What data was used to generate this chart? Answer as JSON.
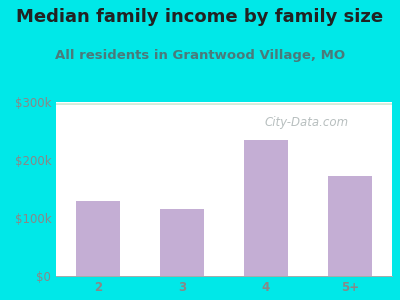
{
  "title": "Median family income by family size",
  "subtitle": "All residents in Grantwood Village, MO",
  "categories": [
    "2",
    "3",
    "4",
    "5+"
  ],
  "values": [
    130000,
    115000,
    235000,
    172000
  ],
  "bar_color": "#c4aed4",
  "title_color": "#222222",
  "subtitle_color": "#4a7a7a",
  "tick_color": "#888888",
  "background_outer": "#00e8e8",
  "ylim": [
    0,
    300000
  ],
  "yticks": [
    0,
    100000,
    200000,
    300000
  ],
  "ytick_labels": [
    "$0",
    "$100k",
    "$200k",
    "$300k"
  ],
  "watermark": "City-Data.com",
  "title_fontsize": 13,
  "subtitle_fontsize": 9.5,
  "tick_fontsize": 8.5,
  "grid_color": "#ddeedf",
  "plot_bg_top": "#f0faf4",
  "plot_bg_bottom": "#d8eedc"
}
